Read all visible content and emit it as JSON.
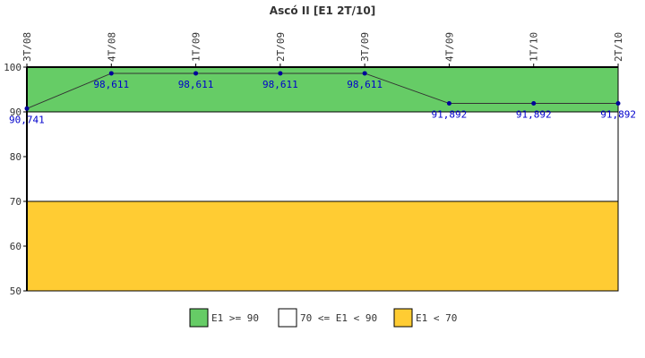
{
  "chart_data": {
    "type": "line",
    "title": "Ascó II [E1 2T/10]",
    "categories": [
      "3T/08",
      "4T/08",
      "1T/09",
      "2T/09",
      "3T/09",
      "4T/09",
      "1T/10",
      "2T/10"
    ],
    "values": [
      90.741,
      98.611,
      98.611,
      98.611,
      98.611,
      91.892,
      91.892,
      91.892
    ],
    "data_labels": [
      "90,741",
      "98,611",
      "98,611",
      "98,611",
      "98,611",
      "91,892",
      "91,892",
      "91,892"
    ],
    "ylim": [
      50,
      100
    ],
    "yticks": [
      50,
      60,
      70,
      80,
      90,
      100
    ],
    "x_tick_position": "top",
    "bands": [
      {
        "from": 90,
        "to": 100,
        "color": "#66cc66",
        "label": "E1 >= 90"
      },
      {
        "from": 70,
        "to": 90,
        "color": "#ffffff",
        "label": "70 <= E1 < 90"
      },
      {
        "from": 50,
        "to": 70,
        "color": "#ffcc33",
        "label": "E1 < 70"
      }
    ],
    "line_color": "#333333",
    "marker_color": "#000099",
    "legend_position": "bottom-center"
  }
}
